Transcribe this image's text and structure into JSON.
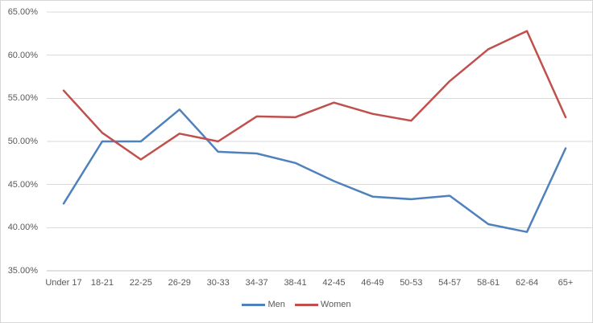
{
  "chart_data": {
    "type": "line",
    "title": "",
    "xlabel": "",
    "ylabel": "",
    "categories": [
      "Under 17",
      "18-21",
      "22-25",
      "26-29",
      "30-33",
      "34-37",
      "38-41",
      "42-45",
      "46-49",
      "50-53",
      "54-57",
      "58-61",
      "62-64",
      "65+"
    ],
    "series": [
      {
        "name": "Men",
        "color": "#4F81BD",
        "values": [
          42.8,
          50.0,
          50.0,
          53.7,
          48.8,
          48.6,
          47.5,
          45.4,
          43.6,
          43.3,
          43.7,
          40.4,
          39.5,
          49.2
        ]
      },
      {
        "name": "Women",
        "color": "#C0504D",
        "values": [
          55.9,
          51.0,
          47.9,
          50.9,
          50.0,
          52.9,
          52.8,
          54.5,
          53.2,
          52.4,
          57.0,
          60.7,
          62.8,
          52.8
        ]
      }
    ],
    "ylim": [
      35,
      65
    ],
    "ytick_step": 5,
    "ytick_labels": [
      "65.00%",
      "60.00%",
      "55.00%",
      "50.00%",
      "45.00%",
      "40.00%",
      "35.00%"
    ],
    "grid": true,
    "legend_position": "bottom-center"
  },
  "style": {
    "gridline_color": "#D9D9D9",
    "axis_line_color": "#C3C3C3",
    "tick_text_color": "#595959",
    "background": "#FFFFFF",
    "border_color": "#D7D7D7"
  }
}
